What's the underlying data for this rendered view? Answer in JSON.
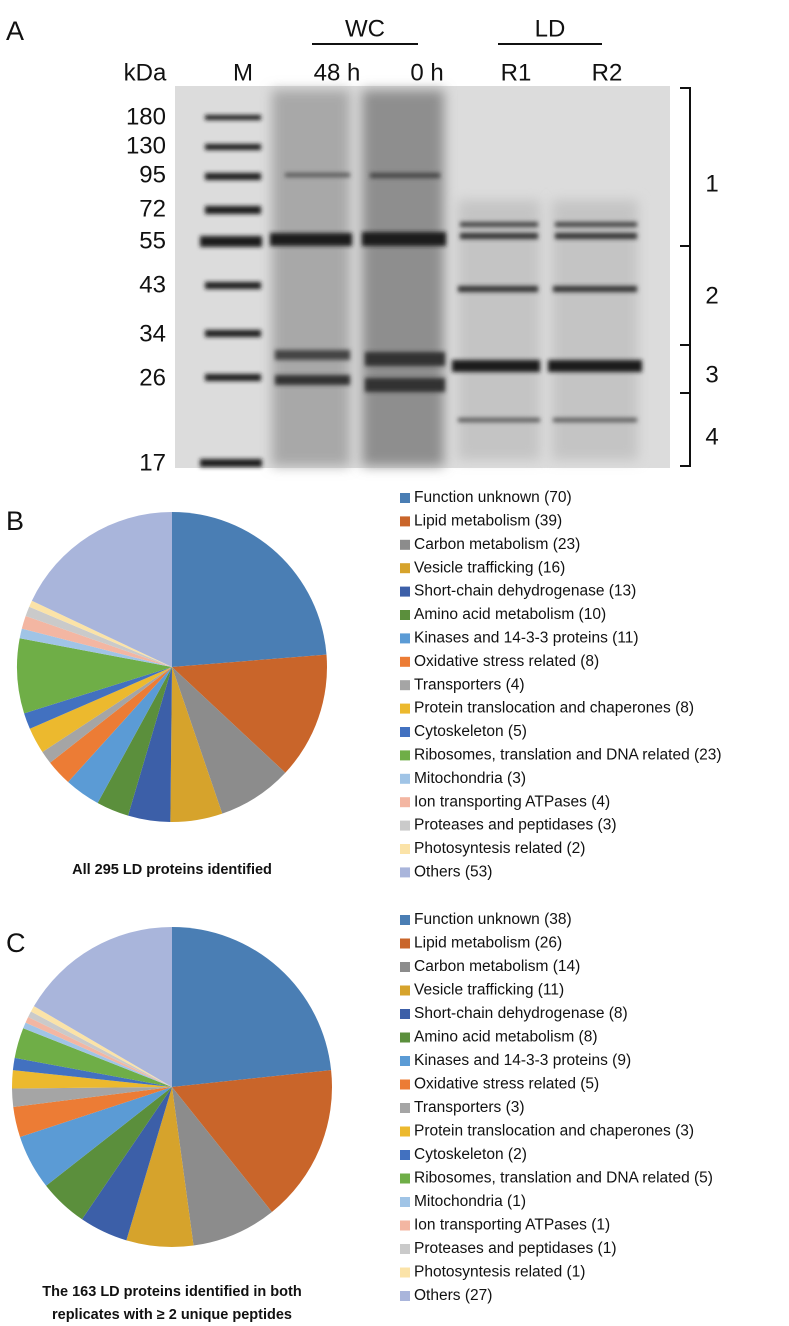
{
  "gel": {
    "panel": "A",
    "groups": [
      "WC",
      "LD"
    ],
    "unit": "kDa",
    "lanes": [
      "M",
      "48 h",
      "0 h",
      "R1",
      "R2"
    ],
    "markers": [
      180,
      130,
      95,
      72,
      55,
      43,
      34,
      26,
      17
    ],
    "fractions": [
      "1",
      "2",
      "3",
      "4"
    ]
  },
  "chart_data": [
    {
      "type": "pie",
      "panel": "B",
      "caption": [
        "All 295 LD proteins identified"
      ],
      "categories": [
        "Function unknown (70)",
        "Lipid metabolism (39)",
        "Carbon metabolism (23)",
        "Vesicle trafficking (16)",
        "Short-chain dehydrogenase (13)",
        "Amino acid metabolism (10)",
        "Kinases and 14-3-3 proteins (11)",
        "Oxidative stress related (8)",
        "Transporters (4)",
        "Protein translocation and chaperones (8)",
        "Cytoskeleton (5)",
        "Ribosomes, translation and DNA related (23)",
        "Mitochondria (3)",
        "Ion transporting ATPases (4)",
        "Proteases and peptidases (3)",
        "Photosyntesis related (2)",
        "Others (53)"
      ],
      "values": [
        70,
        39,
        23,
        16,
        13,
        10,
        11,
        8,
        4,
        8,
        5,
        23,
        3,
        4,
        3,
        2,
        53
      ],
      "colors": [
        "#4a7eb4",
        "#c9652a",
        "#8c8c8c",
        "#d6a32c",
        "#3c5fa8",
        "#5b8f3c",
        "#5b9bd5",
        "#ec7c35",
        "#a5a5a5",
        "#ecb92e",
        "#4271c0",
        "#6fae47",
        "#a0c4e6",
        "#f3b6a2",
        "#cacaca",
        "#fbe3a8",
        "#a9b5db"
      ]
    },
    {
      "type": "pie",
      "panel": "C",
      "caption": [
        "The 163 LD proteins identified in both",
        "replicates with ≥ 2 unique peptides"
      ],
      "categories": [
        "Function unknown (38)",
        "Lipid metabolism (26)",
        "Carbon metabolism (14)",
        "Vesicle trafficking (11)",
        "Short-chain dehydrogenase (8)",
        "Amino acid metabolism (8)",
        "Kinases and 14-3-3 proteins (9)",
        "Oxidative stress related (5)",
        "Transporters (3)",
        "Protein translocation and chaperones (3)",
        "Cytoskeleton (2)",
        "Ribosomes, translation and DNA related (5)",
        "Mitochondria (1)",
        "Ion transporting ATPases (1)",
        "Proteases and peptidases (1)",
        "Photosyntesis related (1)",
        "Others (27)"
      ],
      "values": [
        38,
        26,
        14,
        11,
        8,
        8,
        9,
        5,
        3,
        3,
        2,
        5,
        1,
        1,
        1,
        1,
        27
      ],
      "colors": [
        "#4a7eb4",
        "#c9652a",
        "#8c8c8c",
        "#d6a32c",
        "#3c5fa8",
        "#5b8f3c",
        "#5b9bd5",
        "#ec7c35",
        "#a5a5a5",
        "#ecb92e",
        "#4271c0",
        "#6fae47",
        "#a0c4e6",
        "#f3b6a2",
        "#cacaca",
        "#fbe3a8",
        "#a9b5db"
      ]
    }
  ]
}
